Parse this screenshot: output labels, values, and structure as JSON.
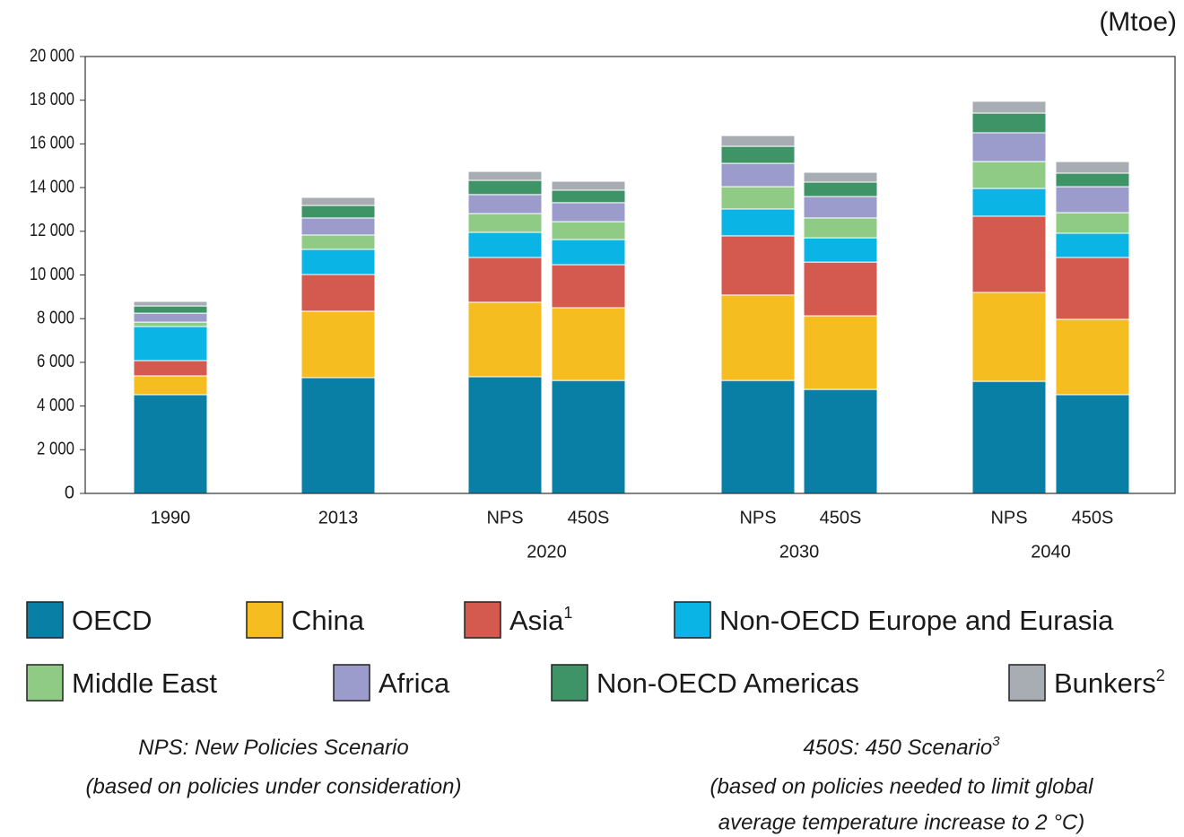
{
  "chart_data": {
    "type": "bar",
    "stacked": true,
    "unit_label": "(Mtoe)",
    "categories": [
      "1990",
      "2013",
      "NPS",
      "450S",
      "NPS",
      "450S",
      "NPS",
      "450S"
    ],
    "group_labels": [
      "2020",
      "2030",
      "2040"
    ],
    "ylim": [
      0,
      20000
    ],
    "yticks": [
      0,
      {
        "value": 2000,
        "label": "2 000"
      },
      {
        "value": 4000,
        "label": "4 000"
      },
      {
        "value": 6000,
        "label": "6 000"
      },
      {
        "value": 8000,
        "label": "8 000"
      },
      {
        "value": 10000,
        "label": "10 000"
      },
      {
        "value": 12000,
        "label": "12 000"
      },
      {
        "value": 14000,
        "label": "14 000"
      },
      {
        "value": 16000,
        "label": "16 000"
      },
      {
        "value": 18000,
        "label": "18 000"
      },
      {
        "value": 20000,
        "label": "20 000"
      }
    ],
    "grid": false,
    "series": [
      {
        "name": "OECD",
        "color": "#0a7fa5",
        "values": [
          4520,
          5300,
          5340,
          5170,
          5170,
          4760,
          5130,
          4520
        ]
      },
      {
        "name": "China",
        "color": "#f5bd1f",
        "values": [
          860,
          3040,
          3410,
          3330,
          3910,
          3370,
          4070,
          3450
        ]
      },
      {
        "name": "Asia",
        "note": "1",
        "color": "#d45a4f",
        "values": [
          700,
          1680,
          2050,
          1970,
          2710,
          2460,
          3490,
          2830
        ]
      },
      {
        "name": "Non-OECD Europe and Eurasia",
        "color": "#0ab4e4",
        "values": [
          1560,
          1150,
          1150,
          1150,
          1230,
          1110,
          1270,
          1110
        ]
      },
      {
        "name": "Middle East",
        "color": "#8fcb85",
        "values": [
          200,
          660,
          860,
          820,
          1020,
          910,
          1230,
          940
        ]
      },
      {
        "name": "Africa",
        "color": "#9b9ccc",
        "values": [
          410,
          780,
          870,
          870,
          1070,
          980,
          1320,
          1190
        ]
      },
      {
        "name": "Non-OECD Americas",
        "color": "#3e9466",
        "values": [
          330,
          570,
          650,
          570,
          780,
          660,
          900,
          620
        ]
      },
      {
        "name": "Bunkers",
        "note": "2",
        "color": "#a8adb3",
        "values": [
          210,
          370,
          410,
          410,
          490,
          450,
          540,
          530
        ]
      }
    ],
    "notes": [
      {
        "title": "NPS: New Policies Scenario",
        "lines": [
          "(based on policies under consideration)"
        ]
      },
      {
        "title": "450S: 450 Scenario",
        "note": "3",
        "lines": [
          "(based on policies needed to limit global",
          "average temperature increase to 2 °C)"
        ]
      }
    ]
  }
}
